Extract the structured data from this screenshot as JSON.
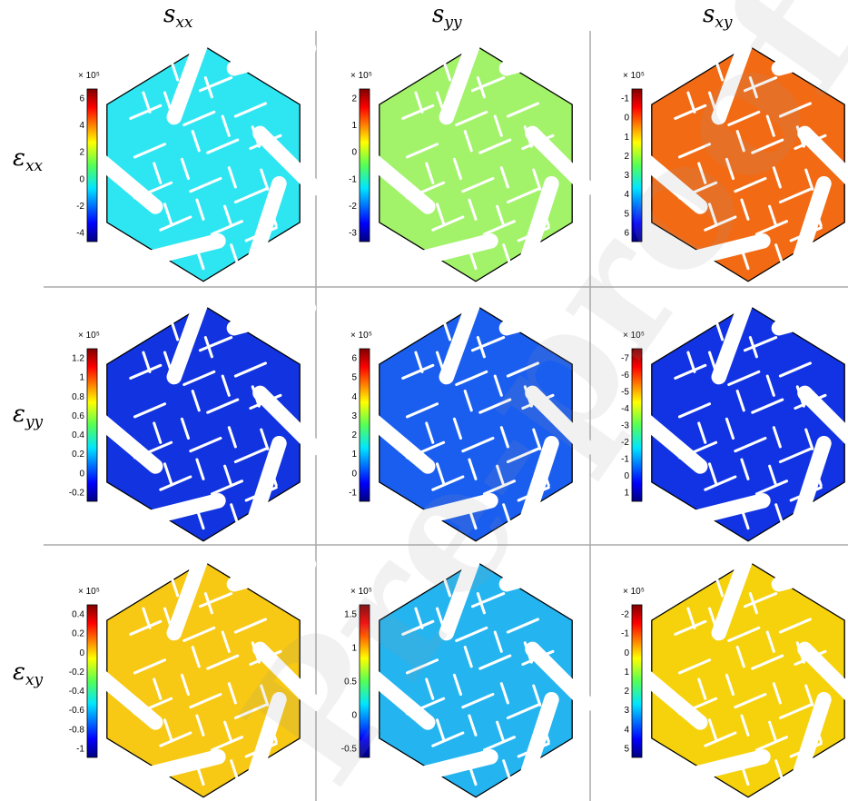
{
  "columns": [
    {
      "base": "s",
      "sub": "xx"
    },
    {
      "base": "s",
      "sub": "yy"
    },
    {
      "base": "s",
      "sub": "xy"
    }
  ],
  "rows": [
    {
      "base": "ε",
      "sub": "xx"
    },
    {
      "base": "ε",
      "sub": "yy"
    },
    {
      "base": "ε",
      "sub": "xy"
    }
  ],
  "scale_label": "× 10⁵",
  "watermark": "Pre-proof",
  "panels": [
    {
      "id": "exx-sxx",
      "fill": "#2ee6f2",
      "ticks": [
        "6",
        "4",
        "2",
        "0",
        "-2",
        "-4"
      ]
    },
    {
      "id": "exx-syy",
      "fill": "#a2f26a",
      "ticks": [
        "2",
        "1",
        "0",
        "-1",
        "-2",
        "-3"
      ]
    },
    {
      "id": "exx-sxy",
      "fill": "#f26a14",
      "ticks": [
        "-1",
        "0",
        "1",
        "2",
        "3",
        "4",
        "5",
        "6"
      ]
    },
    {
      "id": "eyy-sxx",
      "fill": "#1133e0",
      "ticks": [
        "1.2",
        "1",
        "0.8",
        "0.6",
        "0.4",
        "0.2",
        "0",
        "-0.2"
      ]
    },
    {
      "id": "eyy-syy",
      "fill": "#1a5ef0",
      "ticks": [
        "6",
        "5",
        "4",
        "3",
        "2",
        "1",
        "0",
        "-1"
      ]
    },
    {
      "id": "eyy-sxy",
      "fill": "#1133e4",
      "ticks": [
        "-7",
        "-6",
        "-5",
        "-4",
        "-3",
        "-2",
        "-1",
        "0",
        "1"
      ]
    },
    {
      "id": "exy-sxx",
      "fill": "#f7c814",
      "ticks": [
        "0.4",
        "0.2",
        "0",
        "-0.2",
        "-0.4",
        "-0.6",
        "-0.8",
        "-1"
      ]
    },
    {
      "id": "exy-syy",
      "fill": "#24b4f0",
      "ticks": [
        "1.5",
        "1",
        "0.5",
        "0",
        "-0.5"
      ]
    },
    {
      "id": "exy-sxy",
      "fill": "#f5d20c",
      "ticks": [
        "-2",
        "-1",
        "0",
        "1",
        "2",
        "3",
        "4",
        "5"
      ]
    }
  ]
}
